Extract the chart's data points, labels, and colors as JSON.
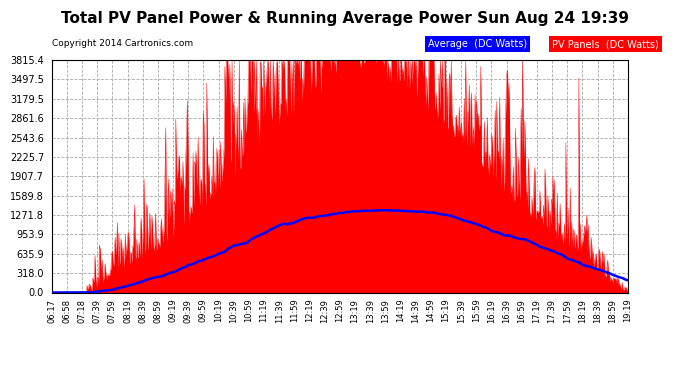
{
  "title": "Total PV Panel Power & Running Average Power Sun Aug 24 19:39",
  "copyright": "Copyright 2014 Cartronics.com",
  "legend_avg": "Average  (DC Watts)",
  "legend_pv": "PV Panels  (DC Watts)",
  "yticks": [
    0.0,
    318.0,
    635.9,
    953.9,
    1271.8,
    1589.8,
    1907.7,
    2225.7,
    2543.6,
    2861.6,
    3179.5,
    3497.5,
    3815.4
  ],
  "xtick_labels": [
    "06:17",
    "06:58",
    "07:18",
    "07:39",
    "07:59",
    "08:19",
    "08:39",
    "08:59",
    "09:19",
    "09:39",
    "09:59",
    "10:19",
    "10:39",
    "10:59",
    "11:19",
    "11:39",
    "11:59",
    "12:19",
    "12:39",
    "12:59",
    "13:19",
    "13:39",
    "13:59",
    "14:19",
    "14:39",
    "14:59",
    "15:19",
    "15:39",
    "15:59",
    "16:19",
    "16:39",
    "16:59",
    "17:19",
    "17:39",
    "17:59",
    "18:19",
    "18:39",
    "18:59",
    "19:19"
  ],
  "background_color": "#ffffff",
  "plot_bg_color": "#ffffff",
  "grid_color": "#aaaaaa",
  "fill_color": "#ff0000",
  "avg_line_color": "#0000ff",
  "title_fontsize": 11,
  "ymax": 3815.4
}
